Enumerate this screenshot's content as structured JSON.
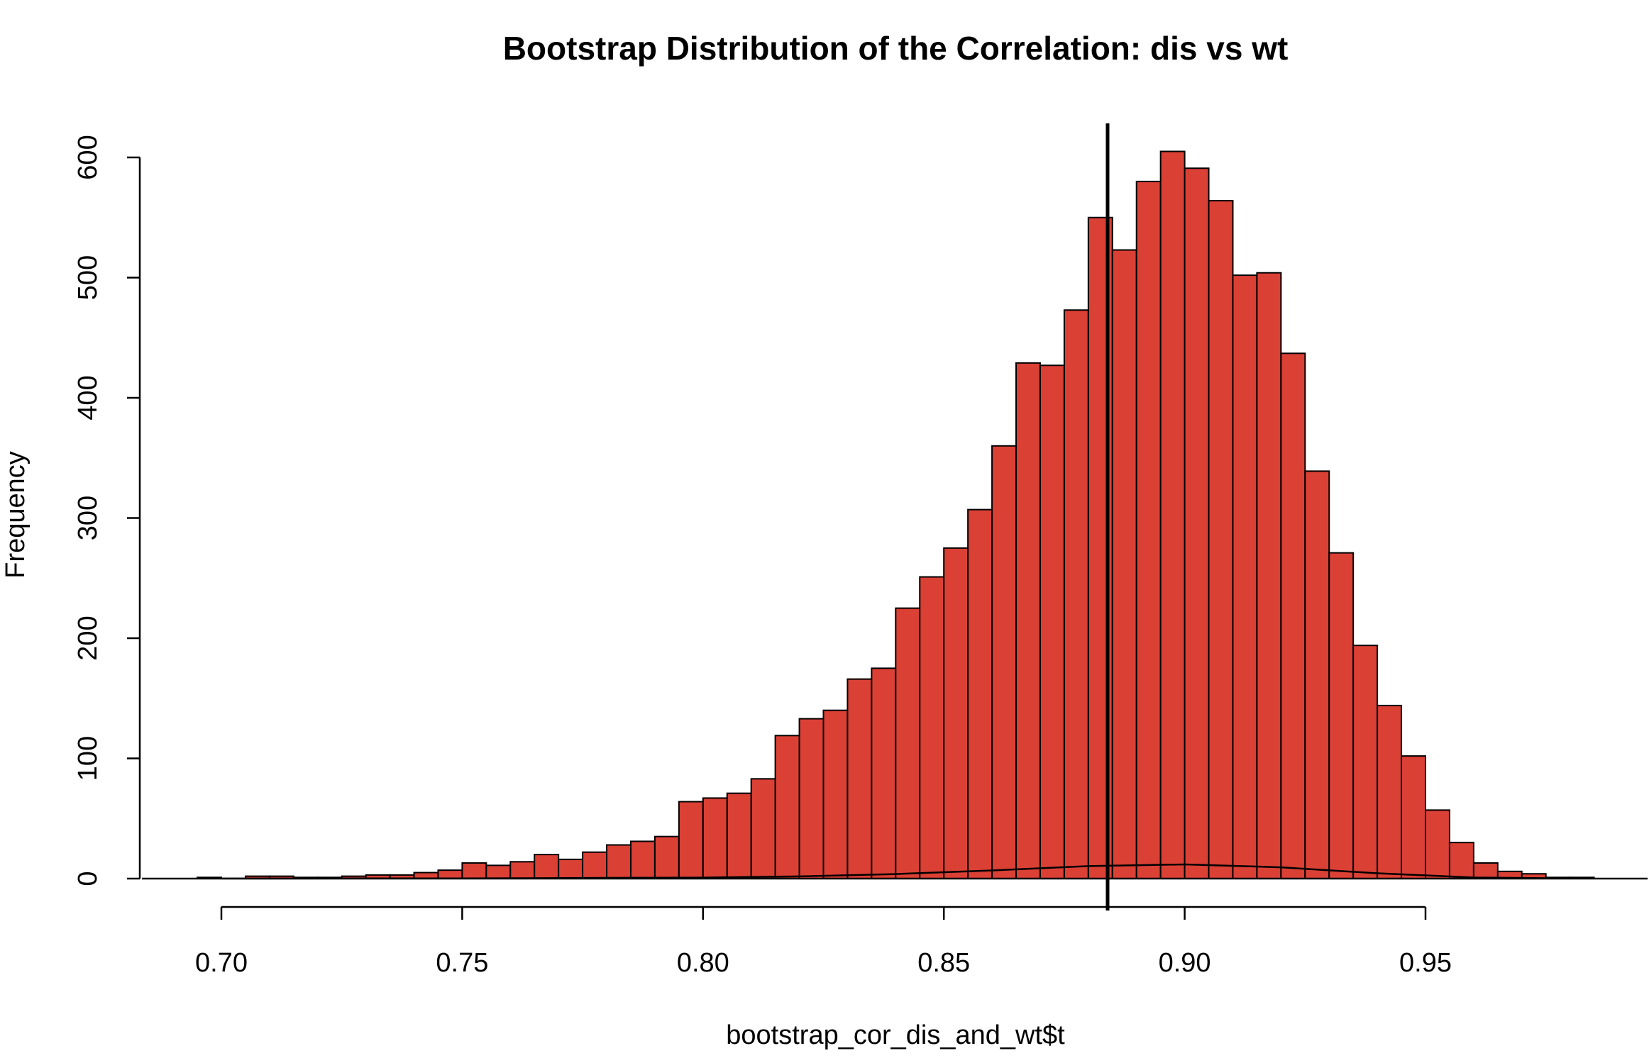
{
  "chart_data": {
    "type": "bar",
    "title": "Bootstrap Distribution of the Correlation: dis vs wt",
    "xlabel": "bootstrap_cor_dis_and_wt$t",
    "ylabel": "Frequency",
    "bar_color": "#db4035",
    "edge_color": "#000000",
    "xlim": [
      0.68,
      0.99
    ],
    "ylim": [
      0,
      600
    ],
    "x_ticks": [
      0.7,
      0.75,
      0.8,
      0.85,
      0.9,
      0.95
    ],
    "x_tick_labels": [
      "0.70",
      "0.75",
      "0.80",
      "0.85",
      "0.90",
      "0.95"
    ],
    "y_ticks": [
      0,
      100,
      200,
      300,
      400,
      500,
      600
    ],
    "y_tick_labels": [
      "0",
      "100",
      "200",
      "300",
      "400",
      "500",
      "600"
    ],
    "bin_width": 0.005,
    "bin_starts": [
      0.695,
      0.7,
      0.705,
      0.71,
      0.715,
      0.72,
      0.725,
      0.73,
      0.735,
      0.74,
      0.745,
      0.75,
      0.755,
      0.76,
      0.765,
      0.77,
      0.775,
      0.78,
      0.785,
      0.79,
      0.795,
      0.8,
      0.805,
      0.81,
      0.815,
      0.82,
      0.825,
      0.83,
      0.835,
      0.84,
      0.845,
      0.85,
      0.855,
      0.86,
      0.865,
      0.87,
      0.875,
      0.88,
      0.885,
      0.89,
      0.895,
      0.9,
      0.905,
      0.91,
      0.915,
      0.92,
      0.925,
      0.93,
      0.935,
      0.94,
      0.945,
      0.95,
      0.955,
      0.96,
      0.965,
      0.97,
      0.975,
      0.98
    ],
    "frequencies": [
      1,
      0,
      2,
      2,
      1,
      1,
      2,
      3,
      3,
      5,
      7,
      13,
      11,
      14,
      20,
      16,
      22,
      28,
      31,
      35,
      64,
      67,
      71,
      83,
      119,
      133,
      140,
      166,
      175,
      225,
      251,
      275,
      307,
      360,
      429,
      427,
      473,
      550,
      523,
      580,
      605,
      591,
      564,
      502,
      504,
      437,
      339,
      271,
      194,
      144,
      102,
      57,
      30,
      13,
      6,
      4,
      1,
      1
    ],
    "vline_x": 0.884,
    "density_curve": {
      "x": [
        0.7,
        0.75,
        0.8,
        0.82,
        0.84,
        0.86,
        0.88,
        0.9,
        0.92,
        0.94,
        0.96,
        0.98
      ],
      "y": [
        0.03,
        0.2,
        0.8,
        1.8,
        3.8,
        6.8,
        10.4,
        11.8,
        9.4,
        4.4,
        0.9,
        0.1
      ]
    }
  }
}
